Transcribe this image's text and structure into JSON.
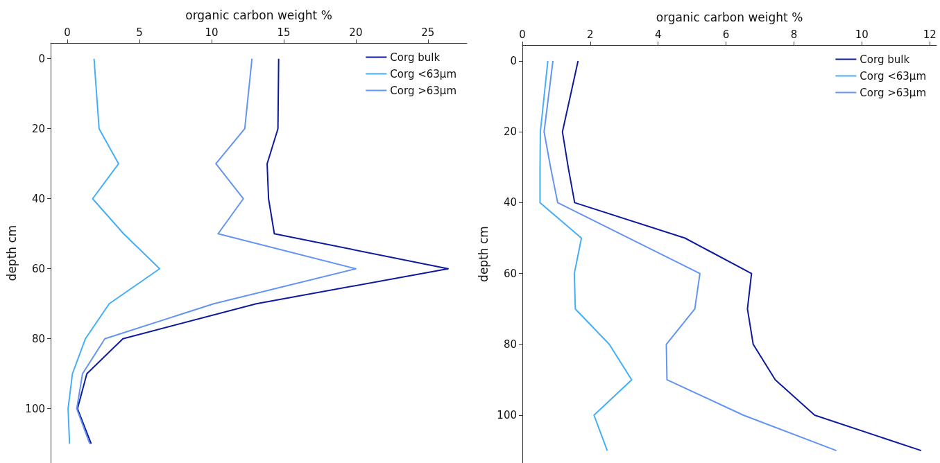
{
  "chart_data": [
    {
      "type": "line",
      "orientation": "horizontal",
      "xlabel": "organic carbon weight %",
      "ylabel": "depth cm",
      "xlim": [
        -1.16,
        27.7
      ],
      "xticks": [
        0,
        5,
        10,
        15,
        20,
        25
      ],
      "ylim": [
        115.5,
        -4.5
      ],
      "yticks": [
        0,
        20,
        40,
        60,
        80,
        100
      ],
      "x": [
        0,
        20,
        30,
        40,
        50,
        60,
        70,
        80,
        90,
        100,
        110
      ],
      "legend": "top right",
      "grid": false,
      "marker": "none",
      "line_style": "solid",
      "series": [
        {
          "name": "Corg bulk",
          "color": "#0c1a9e",
          "values": [
            14.65,
            14.6,
            13.85,
            13.95,
            14.35,
            26.4,
            13.1,
            3.85,
            1.35,
            0.7,
            1.65
          ]
        },
        {
          "name": "Corg <63µm",
          "color": "#44aef6",
          "values": [
            1.85,
            2.2,
            3.55,
            1.75,
            3.9,
            6.4,
            2.9,
            1.25,
            0.35,
            0.05,
            0.15
          ]
        },
        {
          "name": "Corg >63µm",
          "color": "#6394f2",
          "values": [
            12.8,
            12.3,
            10.3,
            12.2,
            10.45,
            20.0,
            10.15,
            2.6,
            1.05,
            0.65,
            1.55
          ]
        }
      ]
    },
    {
      "type": "line",
      "orientation": "horizontal",
      "xlabel": "organic carbon weight %",
      "ylabel": "depth cm",
      "xlim": [
        0,
        12.2
      ],
      "xticks": [
        0,
        2,
        4,
        6,
        8,
        10,
        12
      ],
      "ylim": [
        113.5,
        -4.5
      ],
      "yticks": [
        0,
        20,
        40,
        60,
        80,
        100
      ],
      "x": [
        0,
        20,
        30,
        40,
        50,
        60,
        70,
        80,
        90,
        100,
        110
      ],
      "legend": "top right",
      "grid": false,
      "marker": "none",
      "line_style": "solid",
      "series": [
        {
          "name": "Corg bulk",
          "color": "#0c1a9e",
          "values": [
            1.64,
            1.18,
            1.35,
            1.54,
            4.79,
            6.75,
            6.63,
            6.8,
            7.45,
            8.61,
            11.75
          ]
        },
        {
          "name": "Corg <63µm",
          "color": "#44aef6",
          "values": [
            0.75,
            0.53,
            0.52,
            0.52,
            1.74,
            1.53,
            1.56,
            2.56,
            3.22,
            2.11,
            2.5
          ]
        },
        {
          "name": "Corg >63µm",
          "color": "#6394f2",
          "x": [
            0,
            20,
            30,
            40,
            60,
            70,
            80,
            90,
            100,
            110
          ],
          "values": [
            0.9,
            0.64,
            0.83,
            1.04,
            5.23,
            5.08,
            4.24,
            4.26,
            6.51,
            9.25
          ]
        }
      ]
    }
  ]
}
